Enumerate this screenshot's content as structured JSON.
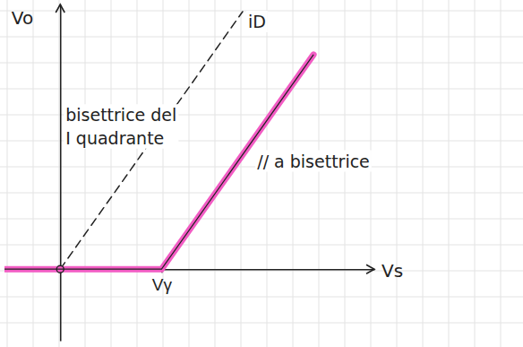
{
  "chart_data": {
    "type": "line",
    "x_label": "Vs",
    "y_label": "Vo",
    "xlim": [
      -0.55,
      3.1
    ],
    "ylim": [
      -0.5,
      1.85
    ],
    "xticks": [
      {
        "value": 1,
        "label": "Vγ"
      }
    ],
    "yticks": [],
    "tick_labels": "x",
    "series": [
      {
        "color": "#222222",
        "line_style": "dashed",
        "x": [
          0,
          1.8
        ],
        "values": [
          0,
          1.8
        ]
      },
      {
        "color": "#f25cc4",
        "line_style": "solid",
        "x": [
          -0.55,
          1,
          2.5
        ],
        "values": [
          0,
          0,
          1.5
        ]
      }
    ],
    "annotations": [
      {
        "text": "iD",
        "series": 0
      },
      {
        "text": "bisettrice del I quadrante",
        "series": 0
      },
      {
        "text": "// a bisettrice",
        "series": 1
      }
    ]
  }
}
